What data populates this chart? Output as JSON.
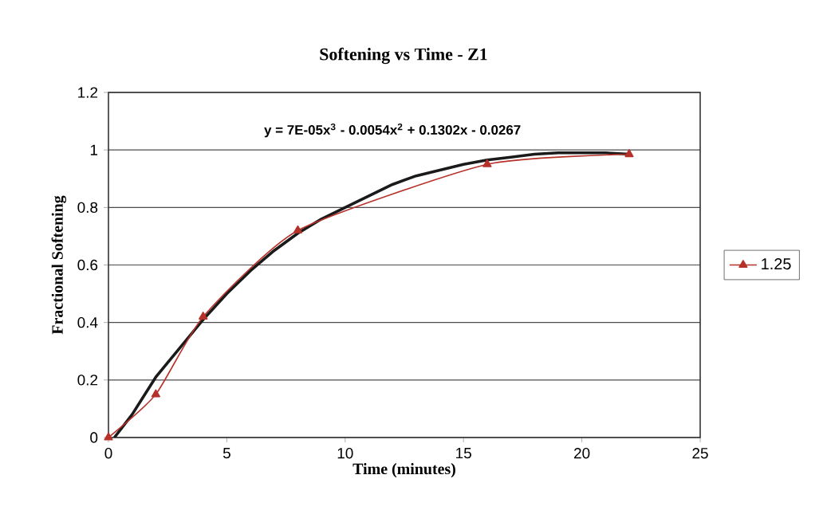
{
  "chart_data": {
    "type": "line",
    "title": "Softening vs Time - Z1",
    "xlabel": "Time (minutes)",
    "ylabel": "Fractional Softening",
    "annotations": [
      "y = 7E-05x$^{3}$ - 0.0054x$^{2}$ + 0.1302x - 0.0267"
    ],
    "x": [
      0,
      2,
      4,
      8,
      16,
      22
    ],
    "series": [
      {
        "name": "1.25",
        "color": "#b5312a",
        "values": [
          0,
          0.15,
          0.42,
          0.72,
          0.95,
          0.985
        ],
        "marker": "triangle"
      },
      {
        "color": "#1a1a1a",
        "x": [
          0.25,
          1,
          2,
          3,
          4,
          5,
          6,
          7,
          8,
          9,
          10,
          11,
          12,
          13,
          14,
          15,
          16,
          17,
          18,
          19,
          20,
          21,
          22
        ],
        "values": [
          0,
          0.08,
          0.21,
          0.31,
          0.41,
          0.5,
          0.58,
          0.65,
          0.71,
          0.76,
          0.8,
          0.84,
          0.88,
          0.91,
          0.93,
          0.95,
          0.965,
          0.975,
          0.985,
          0.99,
          0.99,
          0.99,
          0.985
        ],
        "marker": "none"
      }
    ],
    "xlim": [
      0,
      25
    ],
    "ylim": [
      0,
      1.2
    ],
    "xticks": [
      0,
      5,
      10,
      15,
      20,
      25
    ],
    "yticks": [
      0,
      0.2,
      0.4,
      0.6,
      0.8,
      1,
      1.2
    ],
    "grid": "y",
    "legend": "right"
  }
}
